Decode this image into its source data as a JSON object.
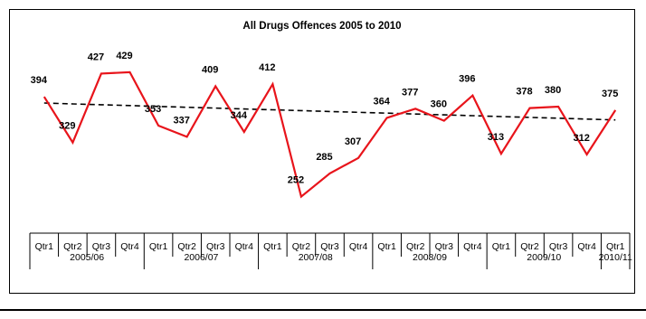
{
  "chart_data": {
    "type": "line",
    "title": "All Drugs Offences 2005 to 2010",
    "xlabel": "",
    "ylabel": "",
    "quarters": [
      "Qtr1",
      "Qtr2",
      "Qtr3",
      "Qtr4",
      "Qtr1",
      "Qtr2",
      "Qtr3",
      "Qtr4",
      "Qtr1",
      "Qtr2",
      "Qtr3",
      "Qtr4",
      "Qtr1",
      "Qtr2",
      "Qtr3",
      "Qtr4",
      "Qtr1",
      "Qtr2",
      "Qtr3",
      "Qtr4",
      "Qtr1"
    ],
    "years": [
      {
        "label": "2005/06",
        "quarters": 4
      },
      {
        "label": "2006/07",
        "quarters": 4
      },
      {
        "label": "2007/08",
        "quarters": 4
      },
      {
        "label": "2008/09",
        "quarters": 4
      },
      {
        "label": "2009/10",
        "quarters": 4
      },
      {
        "label": "2010/11",
        "quarters": 1
      }
    ],
    "series": [
      {
        "values": [
          394,
          329,
          427,
          429,
          353,
          337,
          409,
          344,
          412,
          252,
          285,
          307,
          364,
          377,
          360,
          396,
          313,
          378,
          380,
          312,
          375
        ],
        "color": "#e8141b",
        "style": "solid"
      },
      {
        "kind": "linear-trend",
        "values": [
          385.1,
          383.9,
          382.7,
          381.5,
          380.3,
          379.1,
          377.9,
          376.7,
          375.5,
          374.3,
          373.1,
          371.9,
          370.7,
          369.5,
          368.3,
          367.1,
          365.9,
          364.7,
          363.5,
          362.3,
          361.1
        ],
        "color": "#000000",
        "style": "dashed"
      }
    ],
    "ylim": [
      200,
      470
    ],
    "grid": false,
    "legend": "none",
    "data_labels": true
  }
}
